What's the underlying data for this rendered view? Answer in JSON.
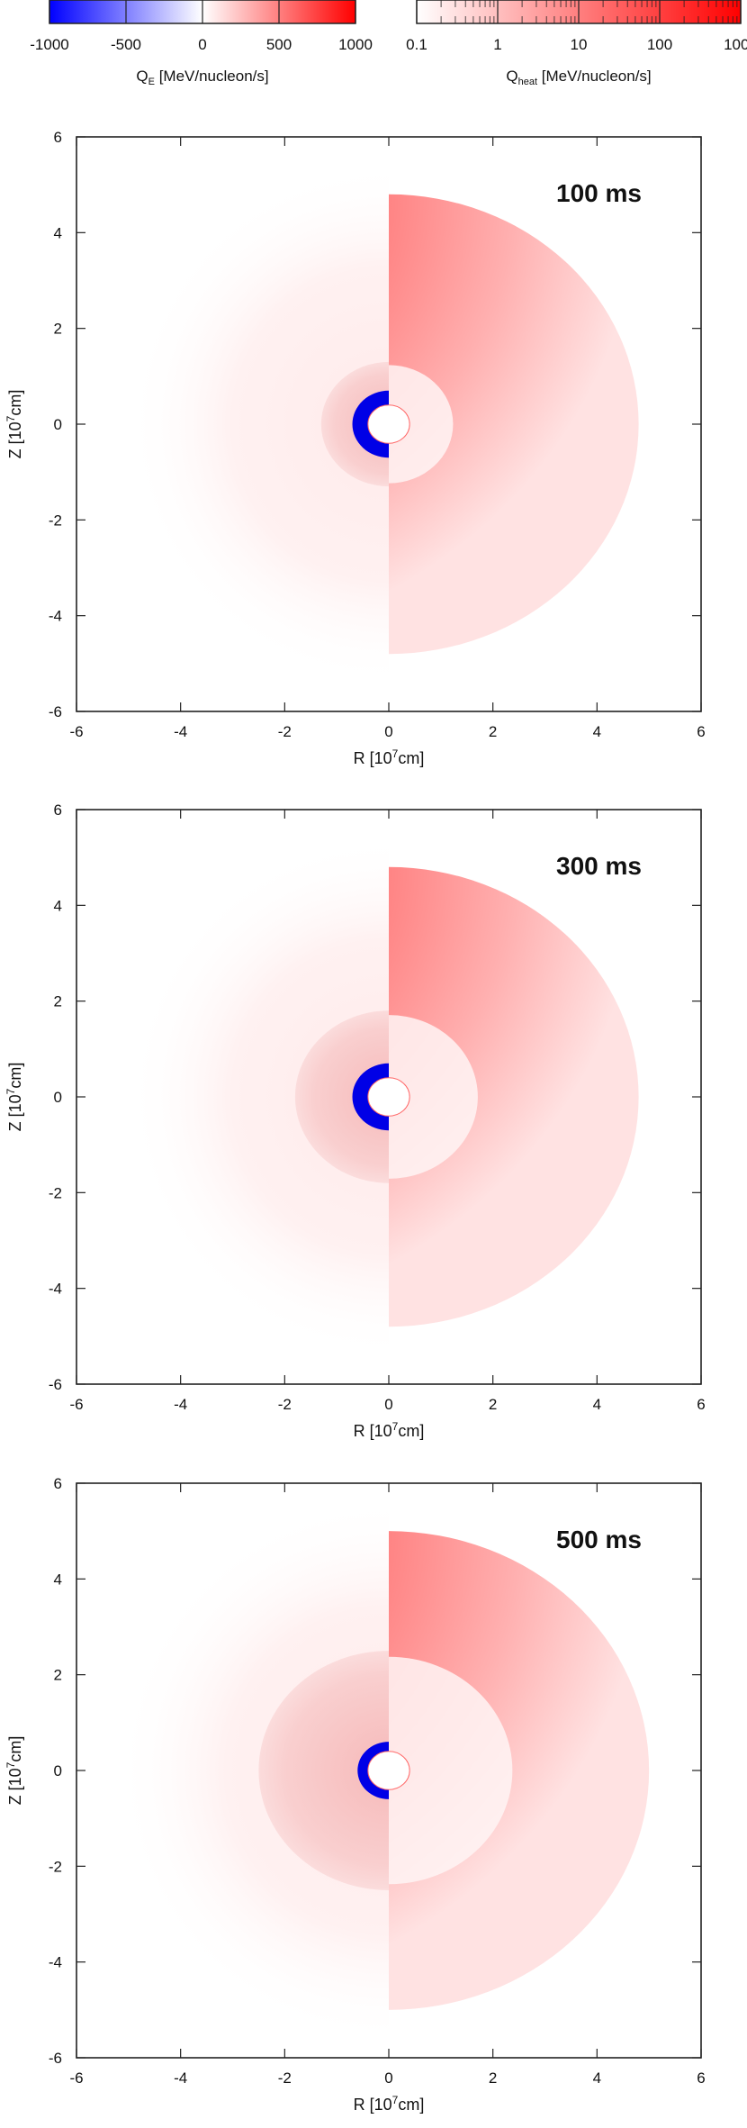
{
  "chart_data": {
    "type": "heatmap",
    "colorbars": [
      {
        "label_main": "Q",
        "label_sub": "E",
        "label_units": " [MeV/nucleon/s]",
        "scale": "linear",
        "range": [
          -1000,
          1000
        ],
        "ticks": [
          "-1000",
          "-500",
          "0",
          "500",
          "1000"
        ],
        "tick_values": [
          -1000,
          -500,
          0,
          500,
          1000
        ],
        "colors": [
          "#0000ff",
          "#ffffff",
          "#ff0000"
        ]
      },
      {
        "label_main": "Q",
        "label_sub": "heat",
        "label_units": " [MeV/nucleon/s]",
        "scale": "log",
        "range": [
          0.1,
          1000
        ],
        "ticks": [
          "0.1",
          "1",
          "10",
          "100",
          "1000"
        ],
        "tick_values": [
          0.1,
          1,
          10,
          100,
          1000
        ],
        "colors": [
          "#ffffff",
          "#ff0000"
        ]
      }
    ],
    "panels": [
      {
        "annotation": "100 ms",
        "shock_radius_left": 1.3,
        "heating_extent_right": 4.8,
        "cooling_band_inner": 0.4,
        "cooling_band_outer": 0.7
      },
      {
        "annotation": "300 ms",
        "shock_radius_left": 1.8,
        "heating_extent_right": 4.8,
        "cooling_band_inner": 0.4,
        "cooling_band_outer": 0.7
      },
      {
        "annotation": "500 ms",
        "shock_radius_left": 2.5,
        "heating_extent_right": 5.0,
        "cooling_band_inner": 0.4,
        "cooling_band_outer": 0.6
      }
    ],
    "xlabel_main": "R [10",
    "xlabel_sup": "7",
    "xlabel_unit": "cm]",
    "ylabel_main": "Z [10",
    "ylabel_sup": "7",
    "ylabel_unit": "cm]",
    "xlim": [
      -6,
      6
    ],
    "ylim": [
      -6,
      6
    ],
    "x_ticks": [
      "-6",
      "-4",
      "-2",
      "0",
      "2",
      "4",
      "6"
    ],
    "x_tick_values": [
      -6,
      -4,
      -2,
      0,
      2,
      4,
      6
    ],
    "y_ticks": [
      "-6",
      "-4",
      "-2",
      "0",
      "2",
      "4",
      "6"
    ],
    "y_tick_values": [
      -6,
      -4,
      -2,
      0,
      2,
      4,
      6
    ],
    "grid": false
  }
}
